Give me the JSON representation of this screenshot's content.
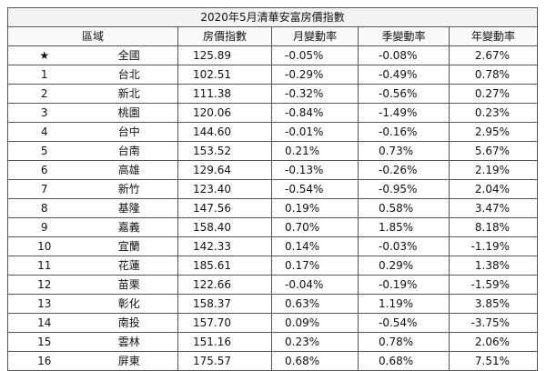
{
  "table": {
    "title": "2020年5月清華安富房價指數",
    "header": [
      "區域",
      "房價指數",
      "月變動率",
      "季變動率",
      "年變動率"
    ],
    "rows": [
      [
        "★",
        "全國",
        "125.89",
        "-0.05%",
        "-0.08%",
        "2.67%"
      ],
      [
        "1",
        "台北",
        "102.51",
        "-0.29%",
        "-0.49%",
        "0.78%"
      ],
      [
        "2",
        "新北",
        "111.38",
        "-0.32%",
        "-0.56%",
        "0.27%"
      ],
      [
        "3",
        "桃園",
        "120.06",
        "-0.84%",
        "-1.49%",
        "0.23%"
      ],
      [
        "4",
        "台中",
        "144.60",
        "-0.01%",
        "-0.16%",
        "2.95%"
      ],
      [
        "5",
        "台南",
        "153.52",
        "0.21%",
        "0.73%",
        "5.67%"
      ],
      [
        "6",
        "高雄",
        "129.64",
        "-0.13%",
        "-0.26%",
        "2.19%"
      ],
      [
        "7",
        "新竹",
        "123.40",
        "-0.54%",
        "-0.95%",
        "2.04%"
      ],
      [
        "8",
        "基隆",
        "147.56",
        "0.19%",
        "0.58%",
        "3.47%"
      ],
      [
        "9",
        "嘉義",
        "158.40",
        "0.70%",
        "1.85%",
        "8.18%"
      ],
      [
        "10",
        "宜蘭",
        "142.33",
        "0.14%",
        "-0.03%",
        "-1.19%"
      ],
      [
        "11",
        "花蓮",
        "185.61",
        "0.17%",
        "0.29%",
        "1.38%"
      ],
      [
        "12",
        "苗栗",
        "122.66",
        "-0.04%",
        "-0.19%",
        "-1.59%"
      ],
      [
        "13",
        "彰化",
        "158.37",
        "0.63%",
        "1.19%",
        "3.85%"
      ],
      [
        "14",
        "南投",
        "157.70",
        "0.09%",
        "-0.54%",
        "-3.75%"
      ],
      [
        "15",
        "雲林",
        "151.16",
        "0.23%",
        "0.78%",
        "2.06%"
      ],
      [
        "16",
        "屏東",
        "175.57",
        "0.68%",
        "0.68%",
        "7.51%"
      ]
    ]
  }
}
